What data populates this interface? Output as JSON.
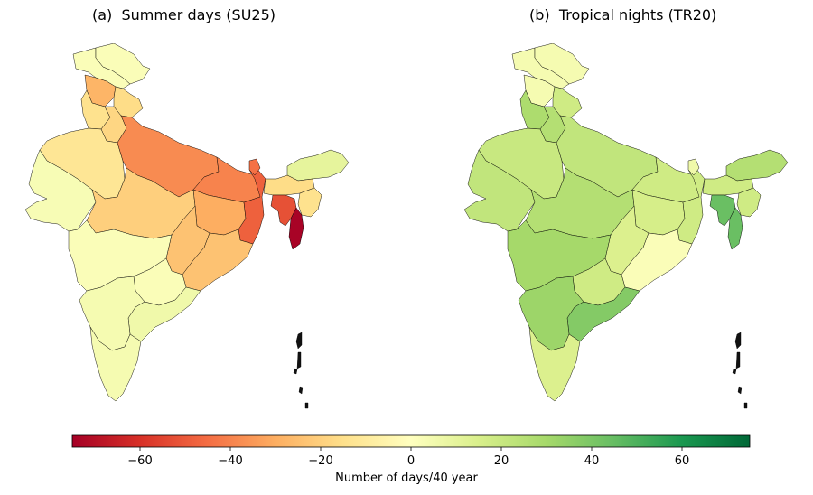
{
  "panels": [
    {
      "id": "a",
      "title": "(a)  Summer days (SU25)",
      "regions": [
        {
          "name": "jammu-kashmir",
          "value": 2
        },
        {
          "name": "ladakh-north",
          "value": 2
        },
        {
          "name": "himachal",
          "value": -28
        },
        {
          "name": "punjab",
          "value": -14
        },
        {
          "name": "uttarakhand",
          "value": -16
        },
        {
          "name": "haryana",
          "value": -18
        },
        {
          "name": "rajasthan",
          "value": -12
        },
        {
          "name": "uttar-pradesh",
          "value": -38
        },
        {
          "name": "bihar",
          "value": -40
        },
        {
          "name": "gujarat",
          "value": 3
        },
        {
          "name": "madhya-pradesh",
          "value": -20
        },
        {
          "name": "jharkhand",
          "value": -30
        },
        {
          "name": "west-bengal",
          "value": -48
        },
        {
          "name": "chhattisgarh",
          "value": -24
        },
        {
          "name": "odisha",
          "value": -24
        },
        {
          "name": "maharashtra",
          "value": 2
        },
        {
          "name": "telangana",
          "value": 2
        },
        {
          "name": "andhra-pradesh",
          "value": 6
        },
        {
          "name": "karnataka",
          "value": 4
        },
        {
          "name": "kerala-tamil",
          "value": 4
        },
        {
          "name": "sikkim",
          "value": -44
        },
        {
          "name": "arunachal",
          "value": 10
        },
        {
          "name": "assam",
          "value": -16
        },
        {
          "name": "ne-south",
          "value": -14
        },
        {
          "name": "meghalaya-tripura",
          "value": -52
        },
        {
          "name": "mizoram",
          "value": -74
        }
      ]
    },
    {
      "id": "b",
      "title": "(b)  Tropical nights (TR20)",
      "regions": [
        {
          "name": "jammu-kashmir",
          "value": 4
        },
        {
          "name": "ladakh-north",
          "value": 4
        },
        {
          "name": "himachal",
          "value": 4
        },
        {
          "name": "punjab",
          "value": 28
        },
        {
          "name": "uttarakhand",
          "value": 18
        },
        {
          "name": "haryana",
          "value": 26
        },
        {
          "name": "rajasthan",
          "value": 20
        },
        {
          "name": "uttar-pradesh",
          "value": 22
        },
        {
          "name": "bihar",
          "value": 18
        },
        {
          "name": "gujarat",
          "value": 22
        },
        {
          "name": "madhya-pradesh",
          "value": 26
        },
        {
          "name": "jharkhand",
          "value": 16
        },
        {
          "name": "west-bengal",
          "value": 18
        },
        {
          "name": "chhattisgarh",
          "value": 14
        },
        {
          "name": "odisha",
          "value": 2
        },
        {
          "name": "maharashtra",
          "value": 30
        },
        {
          "name": "telangana",
          "value": 18
        },
        {
          "name": "andhra-pradesh",
          "value": 38
        },
        {
          "name": "karnataka",
          "value": 32
        },
        {
          "name": "kerala-tamil",
          "value": 14
        },
        {
          "name": "sikkim",
          "value": 6
        },
        {
          "name": "arunachal",
          "value": 26
        },
        {
          "name": "assam",
          "value": 18
        },
        {
          "name": "ne-south",
          "value": 18
        },
        {
          "name": "meghalaya-tripura",
          "value": 44
        },
        {
          "name": "mizoram",
          "value": 44
        }
      ]
    }
  ],
  "colorbar": {
    "label": "Number of days/40 year",
    "min": -75,
    "max": 75,
    "ticks": [
      -60,
      -40,
      -20,
      0,
      20,
      40,
      60
    ],
    "tick_labels": [
      "−60",
      "−40",
      "−20",
      "0",
      "20",
      "40",
      "60"
    ],
    "colormap": "RdYlGn",
    "stops": [
      "#a50026",
      "#d73027",
      "#f46d43",
      "#fdae61",
      "#fee08b",
      "#ffffbf",
      "#d9ef8b",
      "#a6d96a",
      "#66bd63",
      "#1a9850",
      "#006837"
    ]
  }
}
